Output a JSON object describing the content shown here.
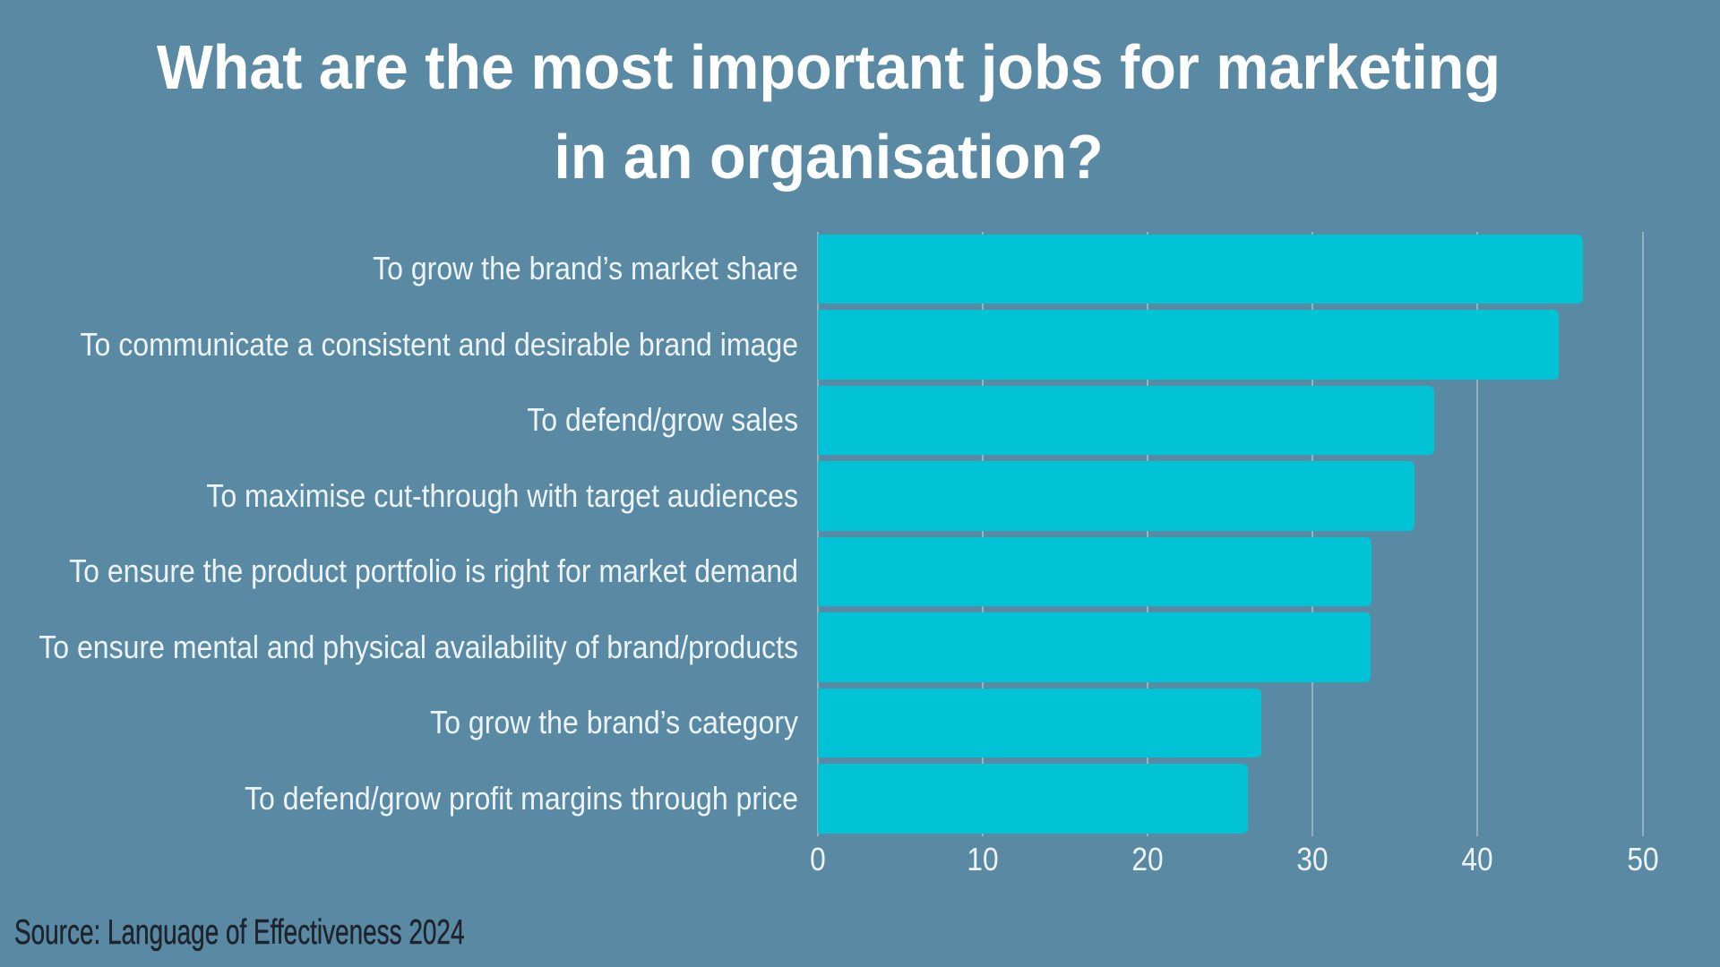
{
  "page": {
    "background_color": "#5a89a4"
  },
  "title": {
    "line1": "What are the most important jobs for marketing",
    "line2": "in an organisation?",
    "color": "#ffffff"
  },
  "source": {
    "text": "Source: Language of Effectiveness 2024",
    "color": "#1d242b"
  },
  "chart_data": {
    "type": "bar",
    "orientation": "horizontal",
    "title": "What are the most important jobs for marketing in an organisation?",
    "categories": [
      "To grow the brand’s market share",
      "To communicate a consistent and desirable brand image",
      "To defend/grow sales",
      "To maximise cut-through with target audiences",
      "To ensure the product portfolio is right for market demand",
      "To ensure mental and physical availability of brand/products",
      "To grow the brand’s category",
      "To defend/grow profit margins through price"
    ],
    "values": [
      46.4,
      44.9,
      37.4,
      36.2,
      33.6,
      33.5,
      26.9,
      26.1
    ],
    "xlabel": "",
    "ylabel": "",
    "xlim": [
      0,
      50
    ],
    "xticks": [
      0,
      10,
      20,
      30,
      40,
      50
    ],
    "grid": true,
    "legend": false,
    "bar_color": "#00c4d5",
    "category_label_color": "#ecf4f7",
    "tick_label_color": "#ecf4f7"
  }
}
